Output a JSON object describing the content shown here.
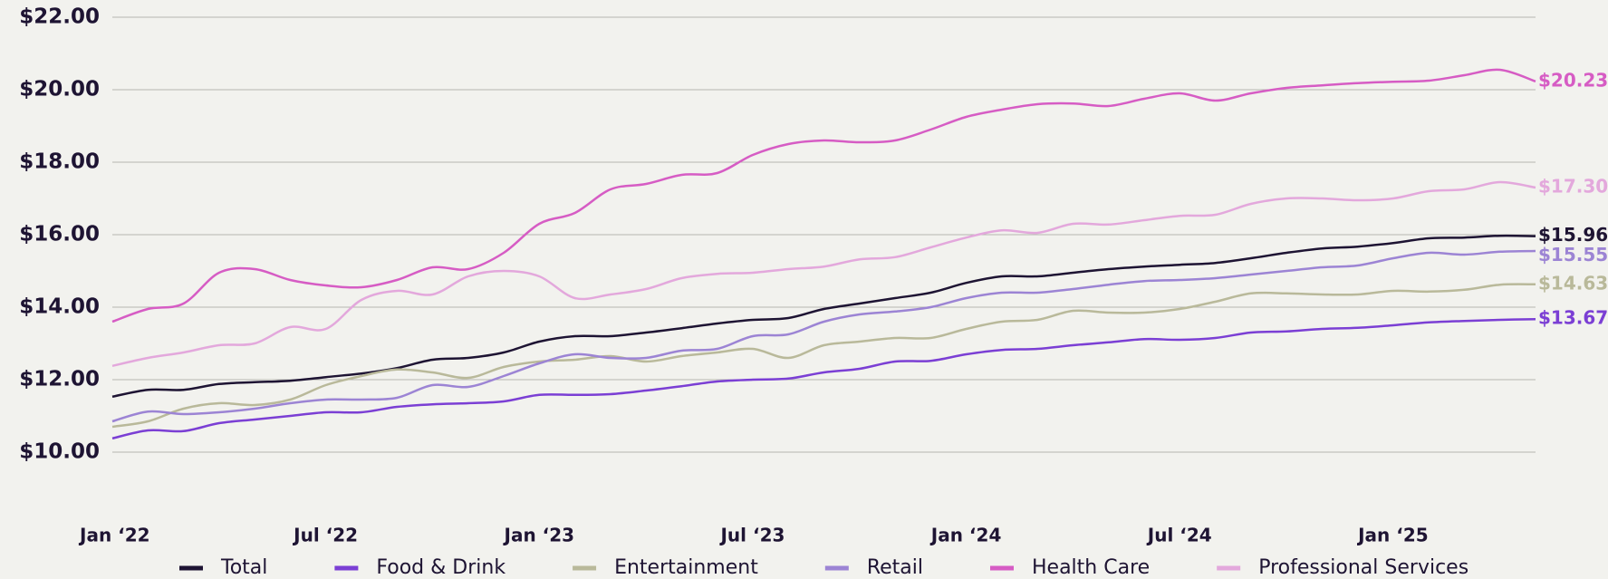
{
  "chart_data": {
    "type": "line",
    "categories": [
      "Jan ‘22",
      null,
      null,
      null,
      null,
      null,
      "Jul ‘22",
      null,
      null,
      null,
      null,
      null,
      "Jan ‘23",
      null,
      null,
      null,
      null,
      null,
      "Jul ‘23",
      null,
      null,
      null,
      null,
      null,
      "Jan ‘24",
      null,
      null,
      null,
      null,
      null,
      "Jul ‘24",
      null,
      null,
      null,
      null,
      null,
      "Jan ‘25",
      null,
      null,
      null,
      null
    ],
    "ylim": [
      10,
      22
    ],
    "yticks": [
      {
        "value": 10,
        "label": "$10.00"
      },
      {
        "value": 12,
        "label": "$12.00"
      },
      {
        "value": 14,
        "label": "$14.00"
      },
      {
        "value": 16,
        "label": "$16.00"
      },
      {
        "value": 18,
        "label": "$18.00"
      },
      {
        "value": 20,
        "label": "$20.00"
      },
      {
        "value": 22,
        "label": "$22.00"
      }
    ],
    "grid": true,
    "legend": "bottom",
    "series": [
      {
        "name": "Total",
        "color": "#1e1433",
        "end_label": "$15.96",
        "values": [
          11.53,
          11.72,
          11.72,
          11.88,
          11.93,
          11.97,
          12.07,
          12.17,
          12.32,
          12.55,
          12.6,
          12.75,
          13.05,
          13.2,
          13.2,
          13.3,
          13.42,
          13.55,
          13.65,
          13.7,
          13.95,
          14.1,
          14.25,
          14.4,
          14.67,
          14.85,
          14.85,
          14.95,
          15.05,
          15.12,
          15.17,
          15.22,
          15.35,
          15.5,
          15.62,
          15.67,
          15.77,
          15.9,
          15.92,
          15.97,
          15.96
        ]
      },
      {
        "name": "Food & Drink",
        "color": "#7b3fd4",
        "end_label": "$13.67",
        "values": [
          10.38,
          10.6,
          10.58,
          10.8,
          10.9,
          11.0,
          11.1,
          11.1,
          11.25,
          11.32,
          11.35,
          11.4,
          11.58,
          11.58,
          11.6,
          11.7,
          11.82,
          11.95,
          12.0,
          12.03,
          12.2,
          12.3,
          12.5,
          12.52,
          12.7,
          12.82,
          12.85,
          12.95,
          13.03,
          13.12,
          13.1,
          13.15,
          13.3,
          13.33,
          13.4,
          13.43,
          13.5,
          13.58,
          13.62,
          13.65,
          13.67
        ]
      },
      {
        "name": "Entertainment",
        "color": "#b9b99a",
        "end_label": "$14.63",
        "values": [
          10.7,
          10.85,
          11.2,
          11.35,
          11.3,
          11.45,
          11.85,
          12.1,
          12.28,
          12.2,
          12.05,
          12.35,
          12.5,
          12.55,
          12.65,
          12.5,
          12.65,
          12.75,
          12.85,
          12.6,
          12.95,
          13.05,
          13.15,
          13.15,
          13.4,
          13.6,
          13.65,
          13.9,
          13.85,
          13.85,
          13.95,
          14.15,
          14.38,
          14.38,
          14.35,
          14.35,
          14.45,
          14.43,
          14.48,
          14.62,
          14.63
        ]
      },
      {
        "name": "Retail",
        "color": "#9c84d4",
        "end_label": "$15.55",
        "values": [
          10.85,
          11.12,
          11.05,
          11.1,
          11.2,
          11.35,
          11.45,
          11.45,
          11.5,
          11.85,
          11.8,
          12.1,
          12.45,
          12.7,
          12.6,
          12.6,
          12.8,
          12.85,
          13.2,
          13.25,
          13.6,
          13.8,
          13.88,
          14.0,
          14.25,
          14.4,
          14.4,
          14.5,
          14.62,
          14.72,
          14.75,
          14.8,
          14.9,
          15.0,
          15.1,
          15.15,
          15.35,
          15.5,
          15.45,
          15.53,
          15.55
        ]
      },
      {
        "name": "Health Care",
        "color": "#d65cc4",
        "end_label": "$20.23",
        "values": [
          13.6,
          13.95,
          14.1,
          14.95,
          15.05,
          14.75,
          14.6,
          14.55,
          14.75,
          15.1,
          15.05,
          15.5,
          16.3,
          16.6,
          17.25,
          17.4,
          17.65,
          17.7,
          18.2,
          18.5,
          18.6,
          18.55,
          18.6,
          18.9,
          19.25,
          19.45,
          19.6,
          19.62,
          19.55,
          19.75,
          19.9,
          19.7,
          19.9,
          20.05,
          20.12,
          20.18,
          20.22,
          20.25,
          20.4,
          20.55,
          20.23
        ]
      },
      {
        "name": "Professional Services",
        "color": "#e3a8dc",
        "end_label": "$17.30",
        "values": [
          12.38,
          12.6,
          12.75,
          12.95,
          13.0,
          13.45,
          13.4,
          14.2,
          14.45,
          14.35,
          14.85,
          15.0,
          14.85,
          14.25,
          14.35,
          14.5,
          14.8,
          14.92,
          14.95,
          15.05,
          15.12,
          15.32,
          15.38,
          15.65,
          15.92,
          16.12,
          16.05,
          16.3,
          16.28,
          16.4,
          16.52,
          16.55,
          16.85,
          17.0,
          17.0,
          16.95,
          17.0,
          17.2,
          17.25,
          17.45,
          17.3
        ]
      }
    ]
  }
}
